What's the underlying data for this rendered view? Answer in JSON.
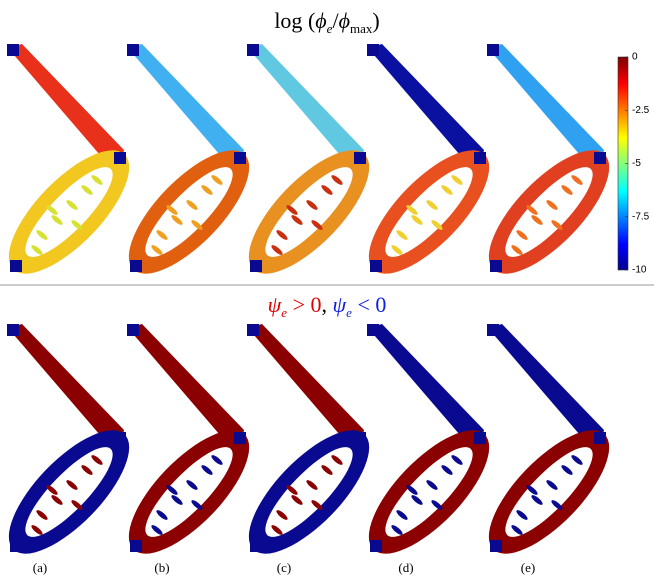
{
  "top_title": {
    "fn": "log",
    "open": "(",
    "num": "ϕ",
    "num_sub": "e",
    "slash": "/",
    "den": "ϕ",
    "den_sub": "max",
    "close": ")"
  },
  "colorbar": {
    "ylim": [
      -10,
      0
    ],
    "yticks": [
      0,
      -2.5,
      -5,
      -7.5,
      -10
    ]
  },
  "bottom_title": {
    "pos_sym": "ψ",
    "pos_sub": "e",
    "pos_rel": " > 0",
    "comma": ", ",
    "neg_sym": "ψ",
    "neg_sub": "e",
    "neg_rel": " < 0"
  },
  "panels": [
    "(a)",
    "(b)",
    "(c)",
    "(d)",
    "(e)"
  ]
}
